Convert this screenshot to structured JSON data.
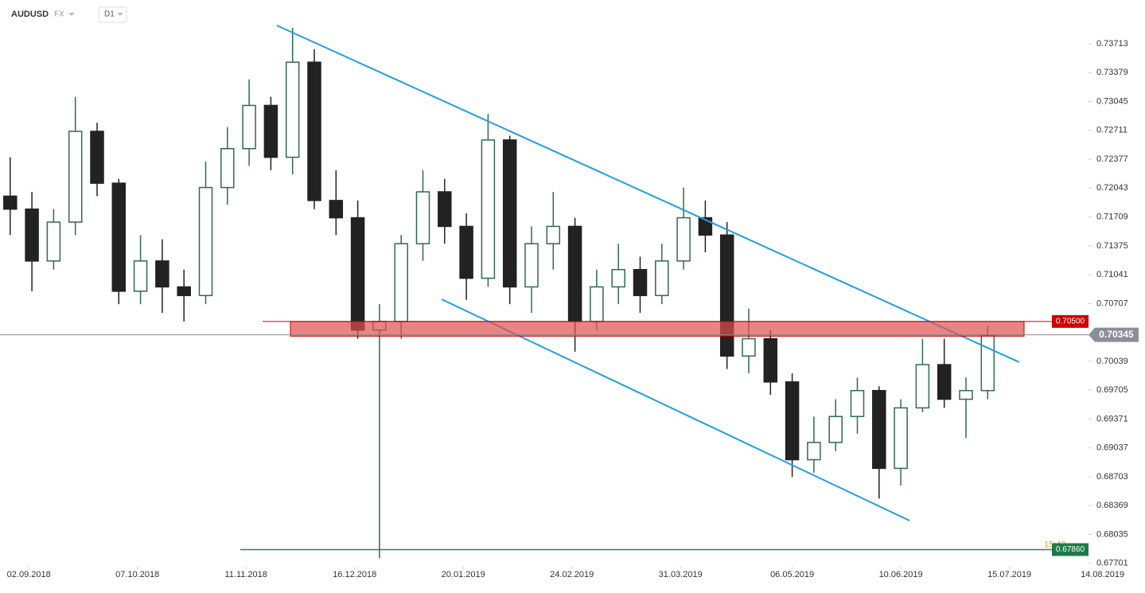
{
  "header": {
    "symbol": "AUDUSD",
    "market": "FX",
    "interval": "D1"
  },
  "chart_data": {
    "type": "candlestick",
    "x": [
      "27.08.2018",
      "03.09.2018",
      "10.09.2018",
      "17.09.2018",
      "24.09.2018",
      "01.10.2018",
      "08.10.2018",
      "15.10.2018",
      "22.10.2018",
      "29.10.2018",
      "05.11.2018",
      "12.11.2018",
      "19.11.2018",
      "26.11.2018",
      "03.12.2018",
      "10.12.2018",
      "17.12.2018",
      "24.12.2018",
      "31.12.2018",
      "07.01.2019",
      "14.01.2019",
      "21.01.2019",
      "28.01.2019",
      "04.02.2019",
      "11.02.2019",
      "18.02.2019",
      "25.02.2019",
      "04.03.2019",
      "11.03.2019",
      "18.03.2019",
      "25.03.2019",
      "01.04.2019",
      "08.04.2019",
      "15.04.2019",
      "22.04.2019",
      "29.04.2019",
      "06.05.2019",
      "13.05.2019",
      "20.05.2019",
      "27.05.2019",
      "03.06.2019",
      "10.06.2019",
      "17.06.2019",
      "24.06.2019",
      "01.07.2019",
      "08.07.2019"
    ],
    "open": [
      0.7195,
      0.718,
      0.712,
      0.7165,
      0.727,
      0.721,
      0.7085,
      0.712,
      0.709,
      0.708,
      0.7205,
      0.725,
      0.73,
      0.724,
      0.735,
      0.719,
      0.717,
      0.704,
      0.705,
      0.714,
      0.72,
      0.716,
      0.71,
      0.726,
      0.709,
      0.714,
      0.716,
      0.705,
      0.709,
      0.711,
      0.708,
      0.712,
      0.717,
      0.715,
      0.701,
      0.703,
      0.698,
      0.689,
      0.691,
      0.694,
      0.697,
      0.688,
      0.695,
      0.7,
      0.696,
      0.697
    ],
    "high": [
      0.724,
      0.72,
      0.718,
      0.731,
      0.728,
      0.7215,
      0.715,
      0.7145,
      0.711,
      0.7235,
      0.7275,
      0.733,
      0.731,
      0.739,
      0.7365,
      0.7225,
      0.719,
      0.707,
      0.715,
      0.7225,
      0.7215,
      0.7175,
      0.729,
      0.7265,
      0.716,
      0.72,
      0.717,
      0.711,
      0.714,
      0.7125,
      0.714,
      0.7205,
      0.719,
      0.7165,
      0.7065,
      0.704,
      0.699,
      0.694,
      0.696,
      0.6985,
      0.6975,
      0.696,
      0.703,
      0.703,
      0.6985,
      0.7045
    ],
    "low": [
      0.715,
      0.7085,
      0.711,
      0.715,
      0.7195,
      0.707,
      0.707,
      0.706,
      0.705,
      0.707,
      0.7185,
      0.723,
      0.7225,
      0.722,
      0.718,
      0.715,
      0.703,
      0.6776,
      0.703,
      0.712,
      0.714,
      0.7075,
      0.709,
      0.707,
      0.706,
      0.711,
      0.7015,
      0.704,
      0.707,
      0.706,
      0.707,
      0.711,
      0.713,
      0.6995,
      0.699,
      0.6965,
      0.687,
      0.6875,
      0.69,
      0.692,
      0.6845,
      0.686,
      0.6945,
      0.695,
      0.6915,
      0.696
    ],
    "close": [
      0.718,
      0.712,
      0.7165,
      0.727,
      0.721,
      0.7085,
      0.712,
      0.709,
      0.708,
      0.7205,
      0.725,
      0.73,
      0.724,
      0.735,
      0.719,
      0.717,
      0.704,
      0.705,
      0.714,
      0.72,
      0.716,
      0.71,
      0.726,
      0.709,
      0.714,
      0.716,
      0.705,
      0.709,
      0.711,
      0.708,
      0.712,
      0.717,
      0.715,
      0.701,
      0.703,
      0.698,
      0.689,
      0.691,
      0.694,
      0.697,
      0.688,
      0.695,
      0.7,
      0.696,
      0.697,
      0.7034
    ],
    "up_color": "#2e6b4f",
    "down_color": "#222222",
    "xlim": [
      "25.08.2018",
      "22.08.2019"
    ],
    "xticks": [
      "02.09.2018",
      "07.10.2018",
      "11.11.2018",
      "16.12.2018",
      "20.01.2019",
      "24.02.2019",
      "31.03.2019",
      "06.05.2019",
      "10.06.2019",
      "15.07.2019",
      "14.08.2019"
    ],
    "ylim": [
      0.6768,
      0.7422
    ],
    "yticks": [
      0.73713,
      0.73379,
      0.73045,
      0.72711,
      0.72377,
      0.72043,
      0.71709,
      0.71375,
      0.71041,
      0.70707,
      0.70039,
      0.69705,
      0.69371,
      0.69037,
      0.68703,
      0.68369,
      0.68035,
      0.67701
    ],
    "zone": {
      "top": {
        "value": 0.705,
        "label": "0.70500"
      },
      "bottom": 0.7033,
      "color": "#e05050"
    },
    "last_price": 0.70345,
    "support_level": {
      "value": 0.6786,
      "label": "0.67860"
    },
    "time_label": "15:43"
  }
}
